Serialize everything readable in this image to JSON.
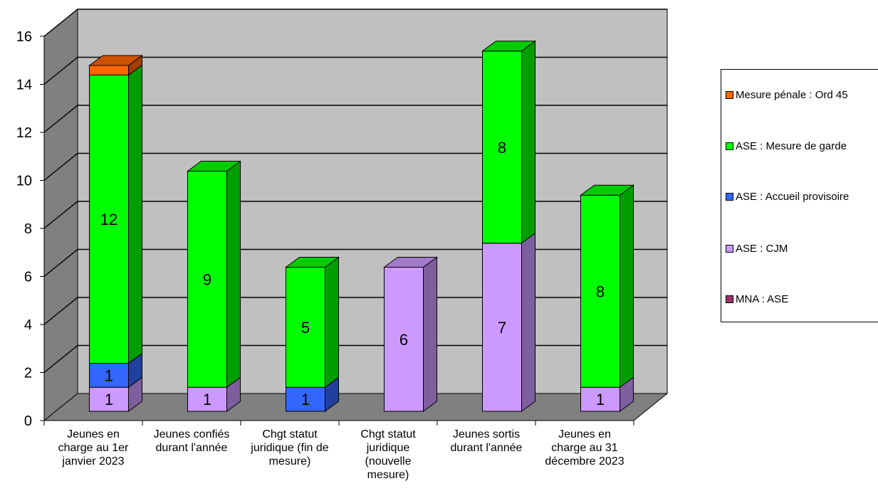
{
  "chart_data": {
    "type": "bar",
    "stacked": true,
    "three_d": true,
    "title": "",
    "xlabel": "",
    "ylabel": "",
    "ylim": [
      0,
      16
    ],
    "yticks": [
      0,
      2,
      4,
      6,
      8,
      10,
      12,
      14,
      16
    ],
    "grid": true,
    "legend_position": "right",
    "categories": [
      [
        "Jeunes en",
        "charge au 1er",
        "janvier 2023"
      ],
      [
        "Jeunes confiés",
        "durant l'année"
      ],
      [
        "Chgt statut",
        "juridique (fin de",
        "mesure)"
      ],
      [
        "Chgt statut",
        "juridique",
        "(nouvelle",
        "mesure)"
      ],
      [
        "Jeunes sortis",
        "durant l'année"
      ],
      [
        "Jeunes en",
        "charge au 31",
        "décembre 2023"
      ]
    ],
    "series": [
      {
        "name": "MNA : ASE",
        "color": "#7B2C4A",
        "values": [
          0,
          0,
          0,
          0,
          0,
          0
        ]
      },
      {
        "name": "ASE : CJM",
        "color": "#CC99FF",
        "values": [
          1,
          1,
          0,
          6,
          7,
          1
        ]
      },
      {
        "name": "ASE : Accueil provisoire",
        "color": "#3366FF",
        "values": [
          1,
          0,
          1,
          0,
          0,
          0
        ]
      },
      {
        "name": "ASE : Mesure de garde",
        "color": "#00FF00",
        "values": [
          12,
          9,
          5,
          0,
          8,
          8
        ]
      },
      {
        "name": "Mesure pénale : Ord 45",
        "color": "#FF6600",
        "values": [
          0.4,
          0,
          0,
          0,
          0,
          0
        ]
      }
    ],
    "data_labels": [
      [
        "",
        "1",
        "1",
        "12",
        ""
      ],
      [
        "",
        "1",
        "",
        "9",
        ""
      ],
      [
        "",
        "",
        "1",
        "5",
        ""
      ],
      [
        "",
        "6",
        "",
        "",
        ""
      ],
      [
        "",
        "7",
        "",
        "8",
        ""
      ],
      [
        "",
        "1",
        "",
        "8",
        ""
      ]
    ]
  },
  "legend": {
    "items": [
      {
        "label": "Mesure pénale : Ord 45",
        "color": "#FF6600"
      },
      {
        "label": "ASE : Mesure de garde",
        "color": "#00FF00"
      },
      {
        "label": "ASE : Accueil provisoire",
        "color": "#3366FF"
      },
      {
        "label": "ASE : CJM",
        "color": "#CC99FF"
      },
      {
        "label": "MNA : ASE",
        "color": "#993366"
      }
    ]
  },
  "style": {
    "wall_color": "#C0C0C0",
    "side_wall_color": "#808080",
    "floor_color": "#808080"
  }
}
